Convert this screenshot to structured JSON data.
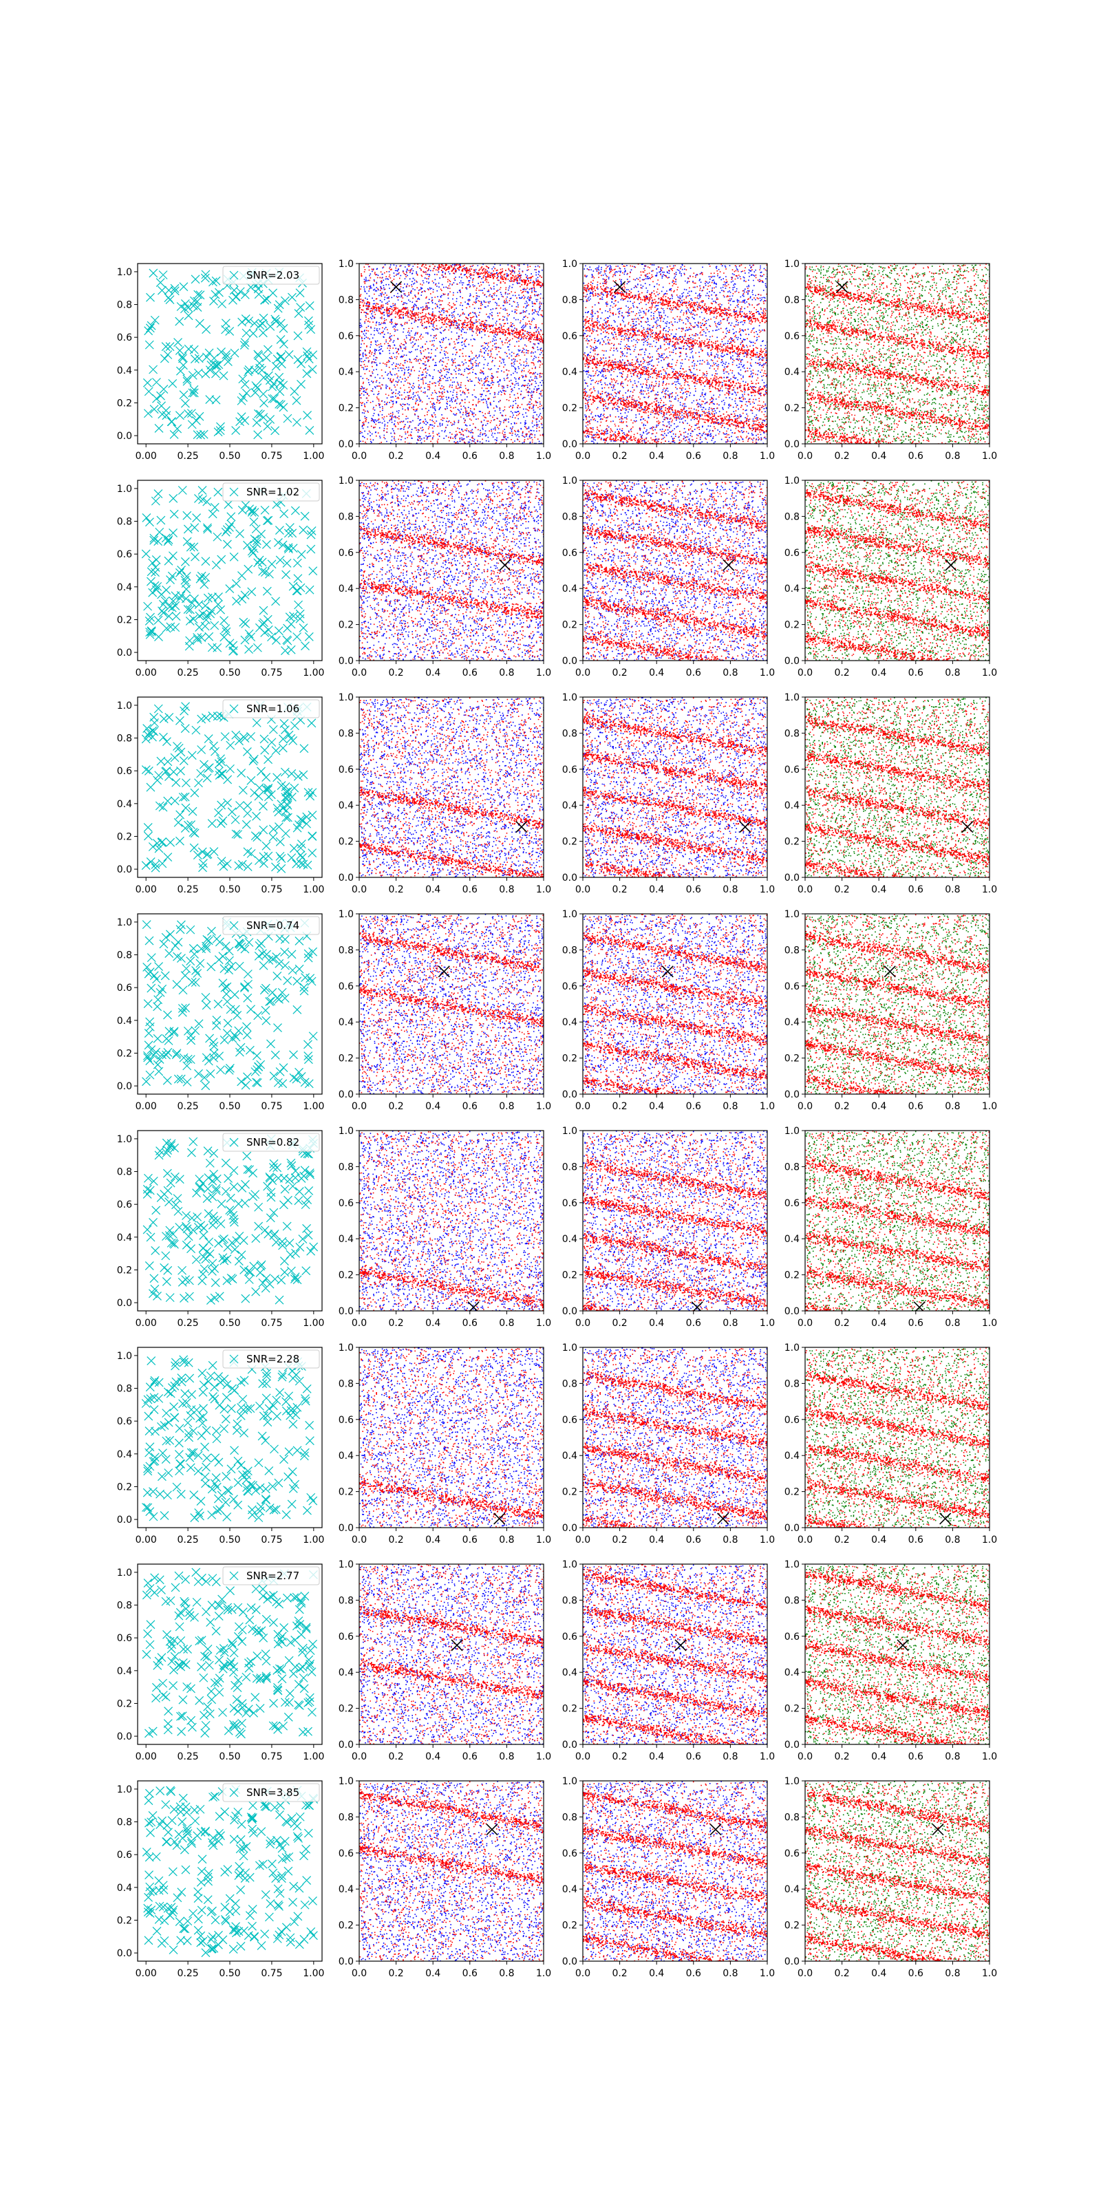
{
  "colors": {
    "background": "#ffffff",
    "axes_edge": "#000000",
    "noise_markers": "#00bfbf",
    "signal_points": "#ff0000",
    "background_points_blue": "#0000ff",
    "background_points_green": "#008000",
    "best_estimate_marker": "#000000"
  },
  "chart_data": {
    "type": "scatter",
    "grid": false,
    "rows": 8,
    "columns": 4,
    "columns_description": [
      {
        "series": [
          {
            "marker": "x",
            "color": "#00bfbf"
          }
        ],
        "xlim": [
          -0.05,
          1.05
        ],
        "ylim": [
          -0.05,
          1.05
        ],
        "xticks": [
          "0.00",
          "0.25",
          "0.50",
          "0.75",
          "1.00"
        ],
        "yticks": [
          "0.0",
          "0.2",
          "0.4",
          "0.6",
          "0.8",
          "1.0"
        ],
        "legend": "top-right"
      },
      {
        "series": [
          {
            "color": "#ff0000"
          },
          {
            "color": "#0000ff"
          }
        ],
        "xlim": [
          0,
          1
        ],
        "ylim": [
          0,
          1
        ],
        "xticks": [
          "0.0",
          "0.2",
          "0.4",
          "0.6",
          "0.8",
          "1.0"
        ],
        "yticks": [
          "0.0",
          "0.2",
          "0.4",
          "0.6",
          "0.8",
          "1.0"
        ]
      },
      {
        "series": [
          {
            "color": "#ff0000"
          },
          {
            "color": "#0000ff"
          }
        ],
        "xlim": [
          0,
          1
        ],
        "ylim": [
          0,
          1
        ],
        "xticks": [
          "0.0",
          "0.2",
          "0.4",
          "0.6",
          "0.8",
          "1.0"
        ],
        "yticks": [
          "0.0",
          "0.2",
          "0.4",
          "0.6",
          "0.8",
          "1.0"
        ]
      },
      {
        "series": [
          {
            "color": "#ff0000"
          },
          {
            "color": "#008000"
          }
        ],
        "xlim": [
          0,
          1
        ],
        "ylim": [
          0,
          1
        ],
        "xticks": [
          "0.0",
          "0.2",
          "0.4",
          "0.6",
          "0.8",
          "1.0"
        ],
        "yticks": [
          "0.0",
          "0.2",
          "0.4",
          "0.6",
          "0.8",
          "1.0"
        ]
      }
    ],
    "panels": [
      {
        "row": 0,
        "legend": "SNR=2.03",
        "marker_x": [
          0.2,
          0.87
        ]
      },
      {
        "row": 1,
        "legend": "SNR=1.02",
        "marker_x": [
          0.79,
          0.53
        ]
      },
      {
        "row": 2,
        "legend": "SNR=1.06",
        "marker_x": [
          0.88,
          0.28
        ]
      },
      {
        "row": 3,
        "legend": "SNR=0.74",
        "marker_x": [
          0.46,
          0.68
        ]
      },
      {
        "row": 4,
        "legend": "SNR=0.82",
        "marker_x": [
          0.62,
          0.02
        ]
      },
      {
        "row": 5,
        "legend": "SNR=2.28",
        "marker_x": [
          0.76,
          0.05
        ]
      },
      {
        "row": 6,
        "legend": "SNR=2.77",
        "marker_x": [
          0.53,
          0.55
        ]
      },
      {
        "row": 7,
        "legend": "SNR=3.85",
        "marker_x": [
          0.72,
          0.73
        ]
      }
    ]
  }
}
